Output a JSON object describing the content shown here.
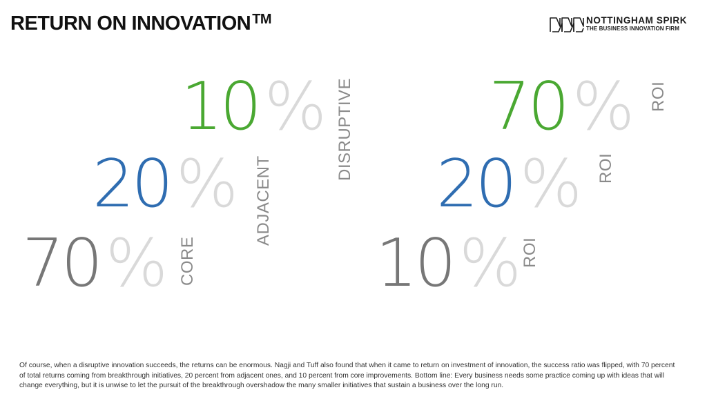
{
  "header": {
    "title": "RETURN ON INNOVATION",
    "trademark": "TM"
  },
  "logo": {
    "name": "NOTTINGHAM SPIRK",
    "tagline": "THE BUSINESS INNOVATION FIRM",
    "icon": "nottingham-spirk-logo-icon"
  },
  "investment": {
    "disruptive": {
      "value": "10",
      "percent": "%",
      "label": "DISRUPTIVE",
      "color": "#4aa832"
    },
    "adjacent": {
      "value": "20",
      "percent": "%",
      "label": "ADJACENT",
      "color": "#2f6db1"
    },
    "core": {
      "value": "70",
      "percent": "%",
      "label": "CORE",
      "color": "#777777"
    }
  },
  "returns": {
    "disruptive": {
      "value": "70",
      "percent": "%",
      "label": "ROI",
      "color": "#4aa832"
    },
    "adjacent": {
      "value": "20",
      "percent": "%",
      "label": "ROI",
      "color": "#2f6db1"
    },
    "core": {
      "value": "10",
      "percent": "%",
      "label": "ROI",
      "color": "#777777"
    }
  },
  "footer": {
    "text": "Of course, when a disruptive innovation succeeds, the returns can be enormous. Nagji and Tuff also found that when it came to return on investment of innovation, the success ratio was flipped, with 70 percent of total returns coming from breakthrough initiatives, 20 percent from adjacent ones, and 10 percent from core improvements. Bottom line: Every business needs some practice coming up with ideas that will change everything, but it is unwise to let the pursuit of the breakthrough overshadow the many smaller initiatives that sustain a business over the long run."
  }
}
